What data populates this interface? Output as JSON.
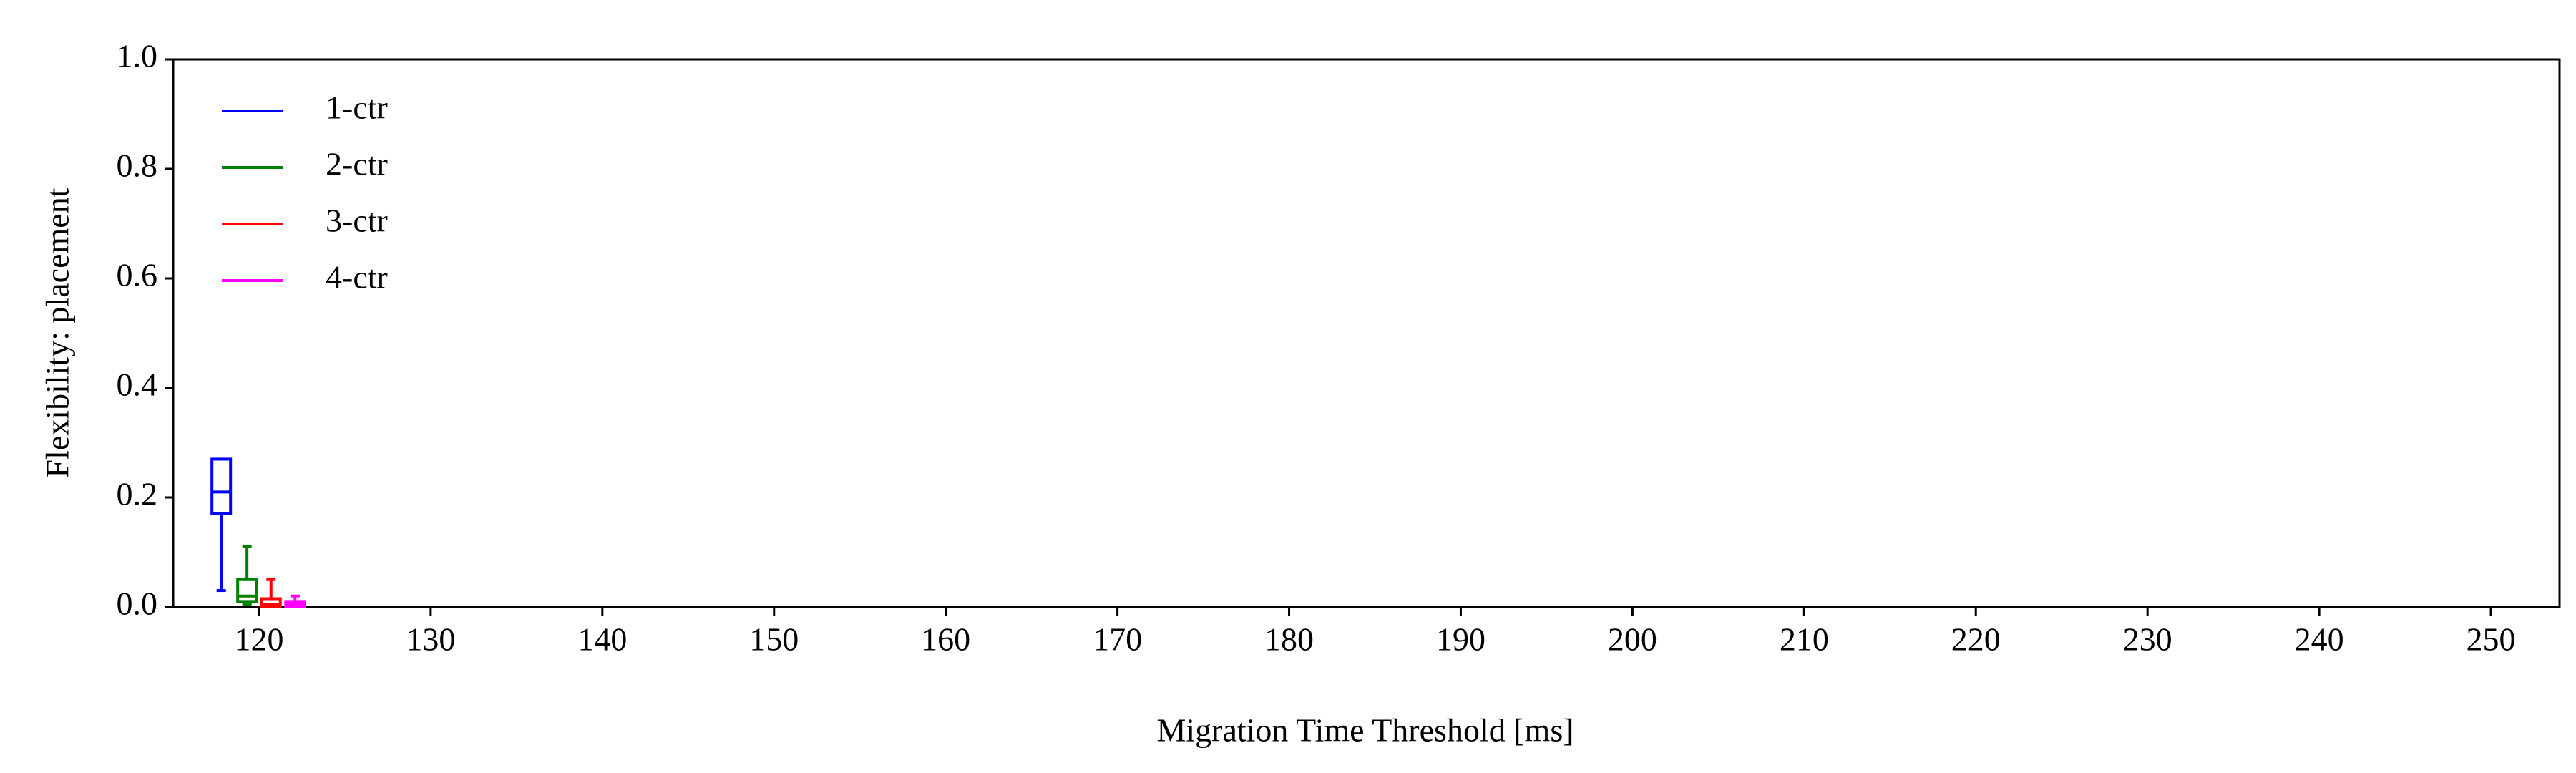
{
  "chart_data": {
    "type": "box",
    "xlabel": "Migration Time Threshold [ms]",
    "ylabel": "Flexibility: placement",
    "xlim": [
      115,
      254
    ],
    "xticks": [
      120,
      130,
      140,
      150,
      160,
      170,
      180,
      190,
      200,
      210,
      220,
      230,
      240,
      250
    ],
    "ylim": [
      0,
      1
    ],
    "yticks": [
      {
        "value": 0,
        "label": "0.0"
      },
      0.2,
      0.4,
      0.6,
      0.8,
      {
        "value": 1,
        "label": "1.0"
      }
    ],
    "legend": "upper left",
    "series": [
      {
        "name": "1-ctr",
        "color": "#0000ff",
        "x": 117.8,
        "whislo": 0.03,
        "q1": 0.17,
        "med": 0.21,
        "q3": 0.27,
        "whishi": 0.27
      },
      {
        "name": "2-ctr",
        "color": "#008000",
        "x": 119.3,
        "whislo": 0.005,
        "q1": 0.01,
        "med": 0.02,
        "q3": 0.05,
        "whishi": 0.11
      },
      {
        "name": "3-ctr",
        "color": "#ff0000",
        "x": 120.7,
        "whislo": 0,
        "q1": 0,
        "med": 0.005,
        "q3": 0.015,
        "whishi": 0.05
      },
      {
        "name": "4-ctr",
        "color": "#ff00ff",
        "x": 122.1,
        "whislo": 0,
        "q1": 0,
        "med": 0.005,
        "q3": 0.01,
        "whishi": 0.02
      }
    ]
  }
}
